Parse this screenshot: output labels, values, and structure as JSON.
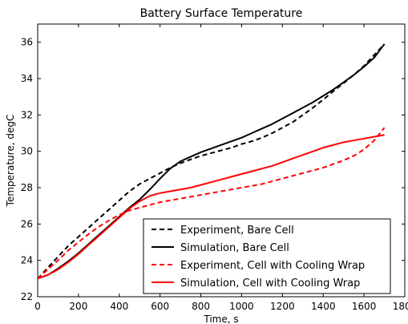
{
  "chart_data": {
    "type": "line",
    "title": "Battery Surface Temperature",
    "xlabel": "Time, s",
    "ylabel": "Temperature, degC",
    "xlim": [
      0,
      1800
    ],
    "ylim": [
      22,
      37
    ],
    "xticks": [
      0,
      200,
      400,
      600,
      800,
      1000,
      1200,
      1400,
      1600,
      1800
    ],
    "yticks": [
      22,
      24,
      26,
      28,
      30,
      32,
      34,
      36
    ],
    "grid": false,
    "legend_position": "lower-right",
    "series": [
      {
        "name": "Experiment, Bare Cell",
        "color": "#000000",
        "style": "dashed",
        "x": [
          0,
          50,
          100,
          150,
          200,
          250,
          300,
          350,
          400,
          450,
          500,
          550,
          600,
          650,
          700,
          750,
          800,
          850,
          900,
          950,
          1000,
          1050,
          1100,
          1150,
          1200,
          1250,
          1300,
          1350,
          1400,
          1450,
          1500,
          1550,
          1600,
          1650,
          1700
        ],
        "y": [
          23.0,
          23.6,
          24.2,
          24.8,
          25.3,
          25.8,
          26.3,
          26.8,
          27.3,
          27.8,
          28.2,
          28.5,
          28.8,
          29.1,
          29.35,
          29.55,
          29.75,
          29.9,
          30.05,
          30.2,
          30.4,
          30.55,
          30.75,
          31.0,
          31.3,
          31.6,
          32.0,
          32.4,
          32.85,
          33.3,
          33.75,
          34.2,
          34.7,
          35.3,
          35.9
        ]
      },
      {
        "name": "Simulation, Bare Cell",
        "color": "#000000",
        "style": "solid",
        "x": [
          0,
          50,
          100,
          150,
          200,
          250,
          300,
          350,
          400,
          450,
          500,
          550,
          600,
          650,
          700,
          750,
          800,
          850,
          900,
          950,
          1000,
          1050,
          1100,
          1150,
          1200,
          1250,
          1300,
          1350,
          1400,
          1450,
          1500,
          1550,
          1600,
          1650,
          1700
        ],
        "y": [
          23.0,
          23.2,
          23.55,
          23.95,
          24.4,
          24.9,
          25.4,
          25.9,
          26.4,
          26.9,
          27.35,
          27.9,
          28.5,
          29.05,
          29.45,
          29.7,
          29.95,
          30.15,
          30.35,
          30.55,
          30.75,
          31.0,
          31.25,
          31.5,
          31.8,
          32.1,
          32.4,
          32.7,
          33.05,
          33.4,
          33.8,
          34.2,
          34.65,
          35.15,
          35.9
        ]
      },
      {
        "name": "Experiment, Cell with Cooling Wrap",
        "color": "#ff0000",
        "style": "dashed",
        "x": [
          0,
          50,
          100,
          150,
          200,
          250,
          300,
          350,
          400,
          450,
          500,
          550,
          600,
          650,
          700,
          750,
          800,
          850,
          900,
          950,
          1000,
          1050,
          1100,
          1150,
          1200,
          1250,
          1300,
          1350,
          1400,
          1450,
          1500,
          1550,
          1600,
          1650,
          1700
        ],
        "y": [
          23.0,
          23.5,
          24.0,
          24.55,
          25.0,
          25.45,
          25.85,
          26.2,
          26.5,
          26.75,
          26.9,
          27.05,
          27.2,
          27.3,
          27.4,
          27.5,
          27.6,
          27.7,
          27.8,
          27.9,
          28.0,
          28.1,
          28.2,
          28.35,
          28.5,
          28.65,
          28.8,
          28.95,
          29.1,
          29.3,
          29.5,
          29.75,
          30.1,
          30.6,
          31.3
        ]
      },
      {
        "name": "Simulation, Cell with Cooling Wrap",
        "color": "#ff0000",
        "style": "solid",
        "x": [
          0,
          50,
          100,
          150,
          200,
          250,
          300,
          350,
          400,
          450,
          500,
          550,
          600,
          650,
          700,
          750,
          800,
          850,
          900,
          950,
          1000,
          1050,
          1100,
          1150,
          1200,
          1250,
          1300,
          1350,
          1400,
          1450,
          1500,
          1550,
          1600,
          1650,
          1700
        ],
        "y": [
          23.0,
          23.2,
          23.5,
          23.9,
          24.35,
          24.85,
          25.35,
          25.85,
          26.35,
          26.85,
          27.25,
          27.55,
          27.7,
          27.8,
          27.9,
          28.0,
          28.15,
          28.3,
          28.45,
          28.6,
          28.75,
          28.9,
          29.05,
          29.2,
          29.4,
          29.6,
          29.8,
          30.0,
          30.2,
          30.35,
          30.5,
          30.6,
          30.7,
          30.8,
          30.9
        ]
      }
    ]
  }
}
